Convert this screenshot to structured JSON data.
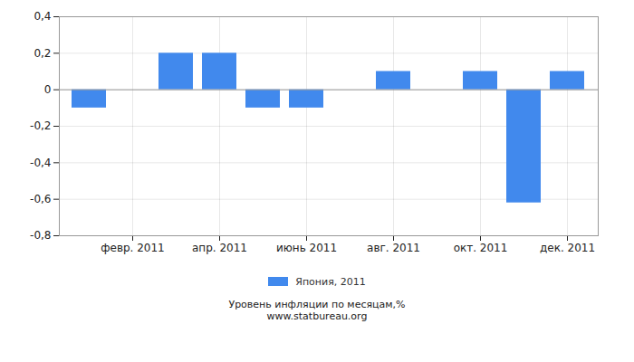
{
  "chart_data": {
    "type": "bar",
    "title": "Уровень инфляции по месяцам,%",
    "annotations": [
      "www.statbureau.org"
    ],
    "categories": [
      null,
      "февр. 2011",
      null,
      "апр. 2011",
      null,
      "июнь 2011",
      null,
      "авг. 2011",
      null,
      "окт. 2011",
      null,
      "дек. 2011"
    ],
    "series": [
      {
        "name": "Япония, 2011",
        "color": "#4189ed",
        "values": [
          -0.1,
          0,
          0.2,
          0.2,
          -0.1,
          -0.1,
          0,
          0.1,
          0,
          0.1,
          -0.62,
          0.1
        ]
      }
    ],
    "ylim": [
      -0.8,
      0.4
    ],
    "yticks": [
      {
        "value": -0.8,
        "label": "-0,8"
      },
      {
        "value": -0.6,
        "label": "-0,6"
      },
      {
        "value": -0.4,
        "label": "-0,4"
      },
      {
        "value": -0.2,
        "label": "-0,2"
      },
      0,
      {
        "value": 0.2,
        "label": "0,2"
      },
      {
        "value": 0.4,
        "label": "0,4"
      }
    ],
    "grid": true,
    "legend": "bottom"
  }
}
